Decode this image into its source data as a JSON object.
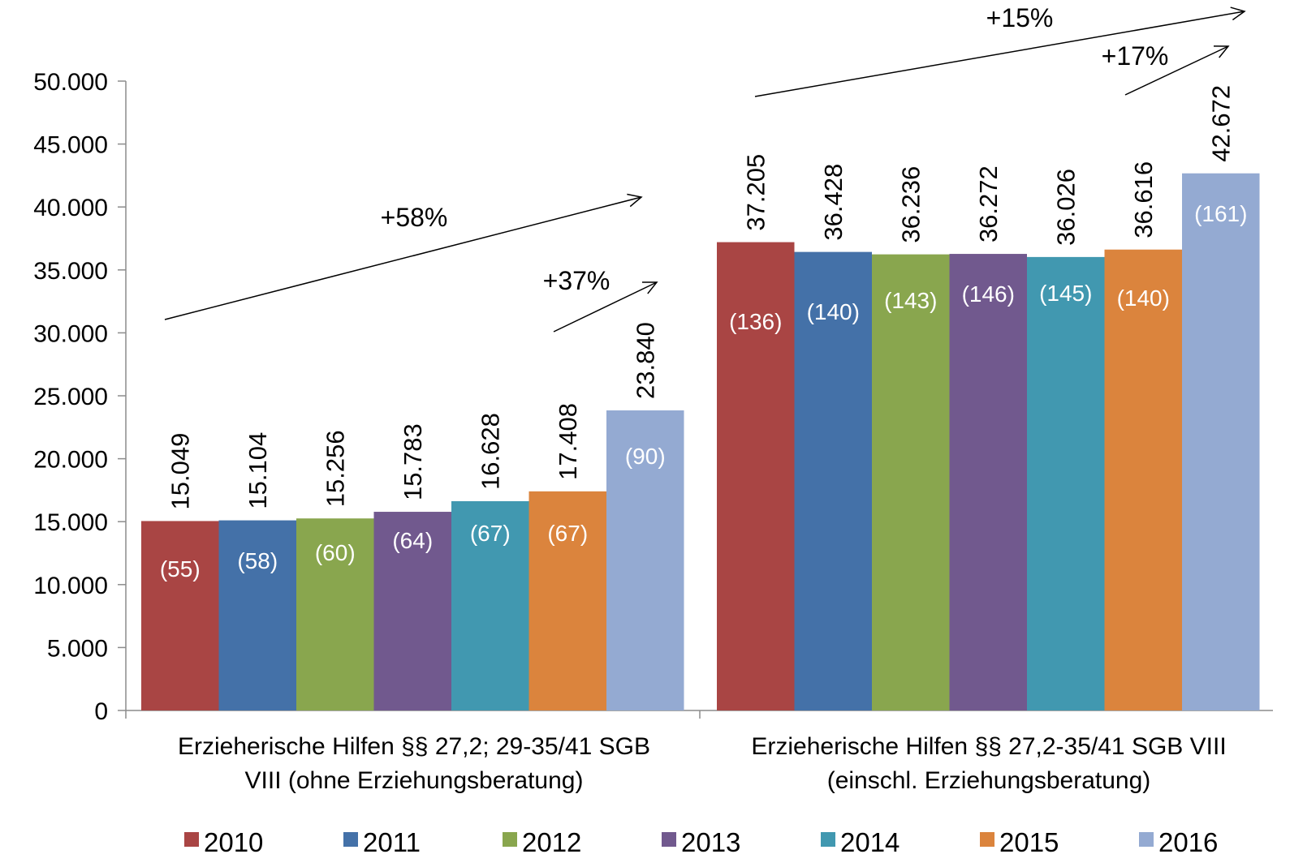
{
  "chart_data": {
    "type": "bar",
    "categories": [
      "Erzieherische Hilfen §§ 27,2; 29-35/41 SGB VIII (ohne Erziehungsberatung)",
      "Erzieherische Hilfen §§ 27,2-35/41 SGB VIII (einschl. Erziehungsberatung)"
    ],
    "category_lines": [
      [
        "Erzieherische Hilfen §§ 27,2; 29-35/41 SGB",
        "VIII (ohne Erziehungsberatung)"
      ],
      [
        "Erzieherische Hilfen §§ 27,2-35/41 SGB VIII",
        "(einschl. Erziehungsberatung)"
      ]
    ],
    "series": [
      {
        "name": "2010",
        "color": "#A94544",
        "values": [
          15049,
          37205
        ],
        "value_labels": [
          "15.049",
          "37.205"
        ],
        "inner_labels": [
          "(55)",
          "(136)"
        ]
      },
      {
        "name": "2011",
        "color": "#4471A8",
        "values": [
          15104,
          36428
        ],
        "value_labels": [
          "15.104",
          "36.428"
        ],
        "inner_labels": [
          "(58)",
          "(140)"
        ]
      },
      {
        "name": "2012",
        "color": "#89A64E",
        "values": [
          15256,
          36236
        ],
        "value_labels": [
          "15.256",
          "36.236"
        ],
        "inner_labels": [
          "(60)",
          "(143)"
        ]
      },
      {
        "name": "2013",
        "color": "#71598E",
        "values": [
          15783,
          36272
        ],
        "value_labels": [
          "15.783",
          "36.272"
        ],
        "inner_labels": [
          "(64)",
          "(146)"
        ]
      },
      {
        "name": "2014",
        "color": "#4198B0",
        "values": [
          16628,
          36026
        ],
        "value_labels": [
          "16.628",
          "36.026"
        ],
        "inner_labels": [
          "(67)",
          "(145)"
        ]
      },
      {
        "name": "2015",
        "color": "#DB843D",
        "values": [
          17408,
          36616
        ],
        "value_labels": [
          "17.408",
          "36.616"
        ],
        "inner_labels": [
          "(67)",
          "(140)"
        ]
      },
      {
        "name": "2016",
        "color": "#94AAD2",
        "values": [
          23840,
          42672
        ],
        "value_labels": [
          "23.840",
          "42.672"
        ],
        "inner_labels": [
          "(90)",
          "(161)"
        ]
      }
    ],
    "ylim": [
      0,
      50000
    ],
    "yticks": [
      0,
      5000,
      10000,
      15000,
      20000,
      25000,
      30000,
      35000,
      40000,
      45000,
      50000
    ],
    "ytick_labels": [
      "0",
      "5.000",
      "10.000",
      "15.000",
      "20.000",
      "25.000",
      "30.000",
      "35.000",
      "40.000",
      "45.000",
      "50.000"
    ],
    "grid": false,
    "legend_position": "bottom",
    "annotations": [
      {
        "text": "+58%",
        "group": 0,
        "from_series": "2010",
        "to_series": "2016"
      },
      {
        "text": "+37%",
        "group": 0,
        "from_series": "2015",
        "to_series": "2016"
      },
      {
        "text": "+15%",
        "group": 1,
        "from_series": "2010",
        "to_series": "2016"
      },
      {
        "text": "+17%",
        "group": 1,
        "from_series": "2015",
        "to_series": "2016"
      }
    ]
  }
}
